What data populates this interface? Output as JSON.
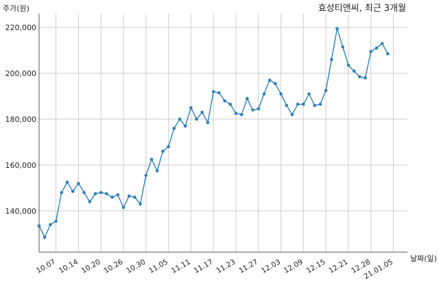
{
  "chart_data": {
    "type": "line",
    "title": "효성티앤씨, 최근 3개월",
    "ylabel": "주가(원)",
    "xlabel": "날짜(일)",
    "ylim": [
      122000,
      226000
    ],
    "grid": true,
    "line_color": "#2f7fb5",
    "point_color": "#2f7fb5",
    "grid_color": "#cccccc",
    "y_ticks": [
      {
        "value": 140000,
        "label": "140,000"
      },
      {
        "value": 160000,
        "label": "160,000"
      },
      {
        "value": 180000,
        "label": "180,000"
      },
      {
        "value": 200000,
        "label": "200,000"
      },
      {
        "value": 220000,
        "label": "220,000"
      }
    ],
    "x_ticks": [
      {
        "index": 3,
        "label": "10.07"
      },
      {
        "index": 7,
        "label": "10.14"
      },
      {
        "index": 11,
        "label": "10.20"
      },
      {
        "index": 15,
        "label": "10.26"
      },
      {
        "index": 19,
        "label": "10.30"
      },
      {
        "index": 23,
        "label": "11.05"
      },
      {
        "index": 27,
        "label": "11.11"
      },
      {
        "index": 31,
        "label": "11.17"
      },
      {
        "index": 35,
        "label": "11.23"
      },
      {
        "index": 39,
        "label": "11.27"
      },
      {
        "index": 43,
        "label": "12.03"
      },
      {
        "index": 47,
        "label": "12.09"
      },
      {
        "index": 51,
        "label": "12.15"
      },
      {
        "index": 55,
        "label": "12.21"
      },
      {
        "index": 59,
        "label": "12.28"
      },
      {
        "index": 63,
        "label": "21.01.05"
      }
    ],
    "series": [
      {
        "values": [
          133500,
          128500,
          134000,
          135500,
          148000,
          152500,
          148500,
          152000,
          148000,
          144000,
          147500,
          148000,
          147500,
          146000,
          147000,
          141500,
          146500,
          146000,
          143000,
          155500,
          162500,
          157500,
          166000,
          168000,
          176000,
          180000,
          177000,
          185000,
          180000,
          183000,
          178500,
          192000,
          191500,
          188000,
          186500,
          182500,
          182000,
          189000,
          184000,
          184500,
          191000,
          197000,
          195500,
          191000,
          186000,
          182000,
          186500,
          186500,
          191000,
          186000,
          186500,
          192500,
          206000,
          219500,
          211500,
          203500,
          201000,
          198500,
          198000,
          209500,
          211000,
          213000,
          208500
        ]
      }
    ]
  }
}
